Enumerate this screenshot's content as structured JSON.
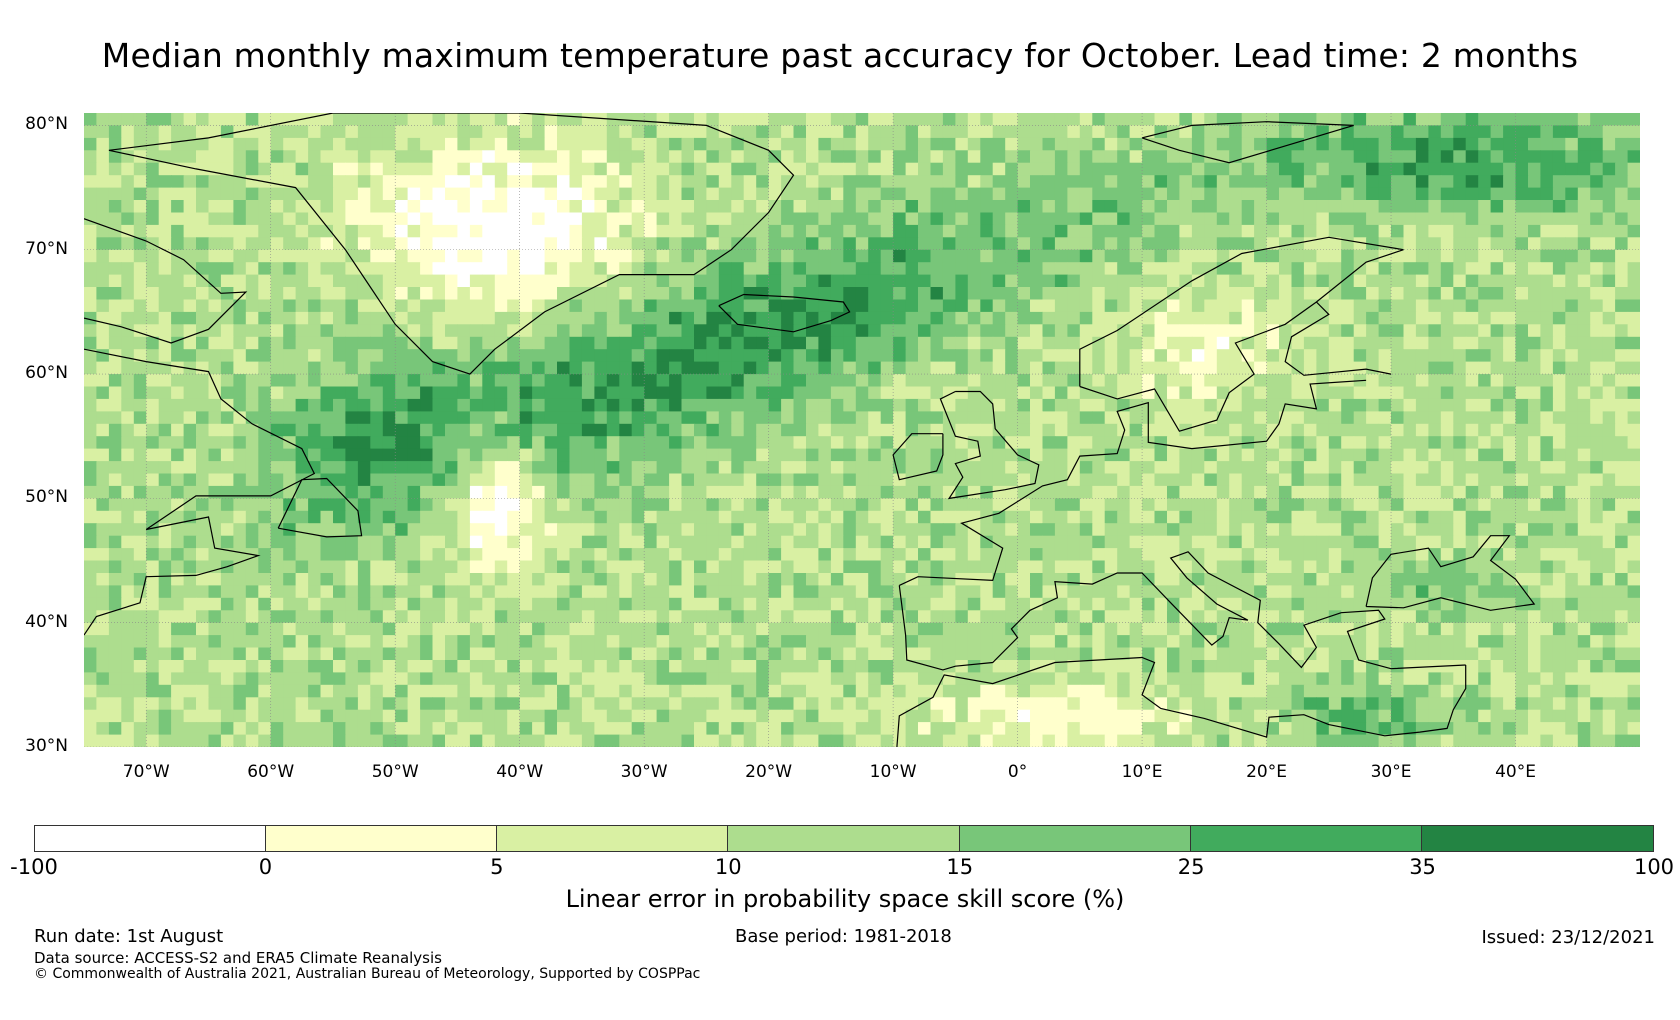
{
  "title": "Median monthly maximum temperature past accuracy for October. Lead time: 2 months",
  "map": {
    "region": "North Atlantic and Europe",
    "lat_labels": [
      "80°N",
      "70°N",
      "60°N",
      "50°N",
      "40°N",
      "30°N"
    ],
    "lon_labels": [
      "70°W",
      "60°W",
      "50°W",
      "40°W",
      "30°W",
      "20°W",
      "10°W",
      "0°",
      "10°E",
      "20°E",
      "30°E",
      "40°E"
    ],
    "lat_range": [
      30,
      81
    ],
    "lon_range": [
      -75,
      50
    ],
    "gridlines": true,
    "coastlines": true
  },
  "colorbar": {
    "ticks": [
      "-100",
      "0",
      "5",
      "10",
      "15",
      "25",
      "35",
      "100"
    ],
    "bins": [
      {
        "from": -100,
        "to": 0,
        "color": "#ffffff"
      },
      {
        "from": 0,
        "to": 5,
        "color": "#ffffcc"
      },
      {
        "from": 5,
        "to": 10,
        "color": "#d9f0a3"
      },
      {
        "from": 10,
        "to": 15,
        "color": "#addd8e"
      },
      {
        "from": 15,
        "to": 25,
        "color": "#78c679"
      },
      {
        "from": 25,
        "to": 35,
        "color": "#41ab5d"
      },
      {
        "from": 35,
        "to": 100,
        "color": "#238443"
      }
    ],
    "label": "Linear error in probability space skill score (%)"
  },
  "footer": {
    "run_date": "Run date: 1st August",
    "base_period": "Base period: 1981-2018",
    "issued": "Issued: 23/12/2021",
    "data_source": "Data source: ACCESS-S2 and ERA5 Climate Reanalysis",
    "copyright": "© Commonwealth of Australia 2021, Australian Bureau of Meteorology, Supported by COSPPac"
  }
}
